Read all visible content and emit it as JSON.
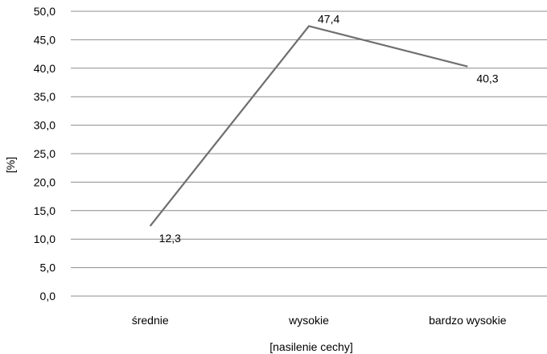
{
  "chart_data": {
    "type": "line",
    "categories": [
      "średnie",
      "wysokie",
      "bardzo wysokie"
    ],
    "series": [
      {
        "values": [
          12.3,
          47.4,
          40.3
        ],
        "color": "#707070"
      }
    ],
    "data_labels": [
      "12,3",
      "47,4",
      "40,3"
    ],
    "title": "",
    "xlabel": "[nasilenie cechy]",
    "ylabel": "[%]",
    "ylim": [
      0,
      50
    ],
    "y_ticks": [
      0,
      5,
      10,
      15,
      20,
      25,
      30,
      35,
      40,
      45,
      50
    ],
    "y_tick_labels": [
      "0,0",
      "5,0",
      "10,0",
      "15,0",
      "20,0",
      "25,0",
      "30,0",
      "35,0",
      "40,0",
      "45,0",
      "50,0"
    ],
    "grid": true,
    "legend": "none",
    "gridline_color": "#8c8c8c"
  }
}
